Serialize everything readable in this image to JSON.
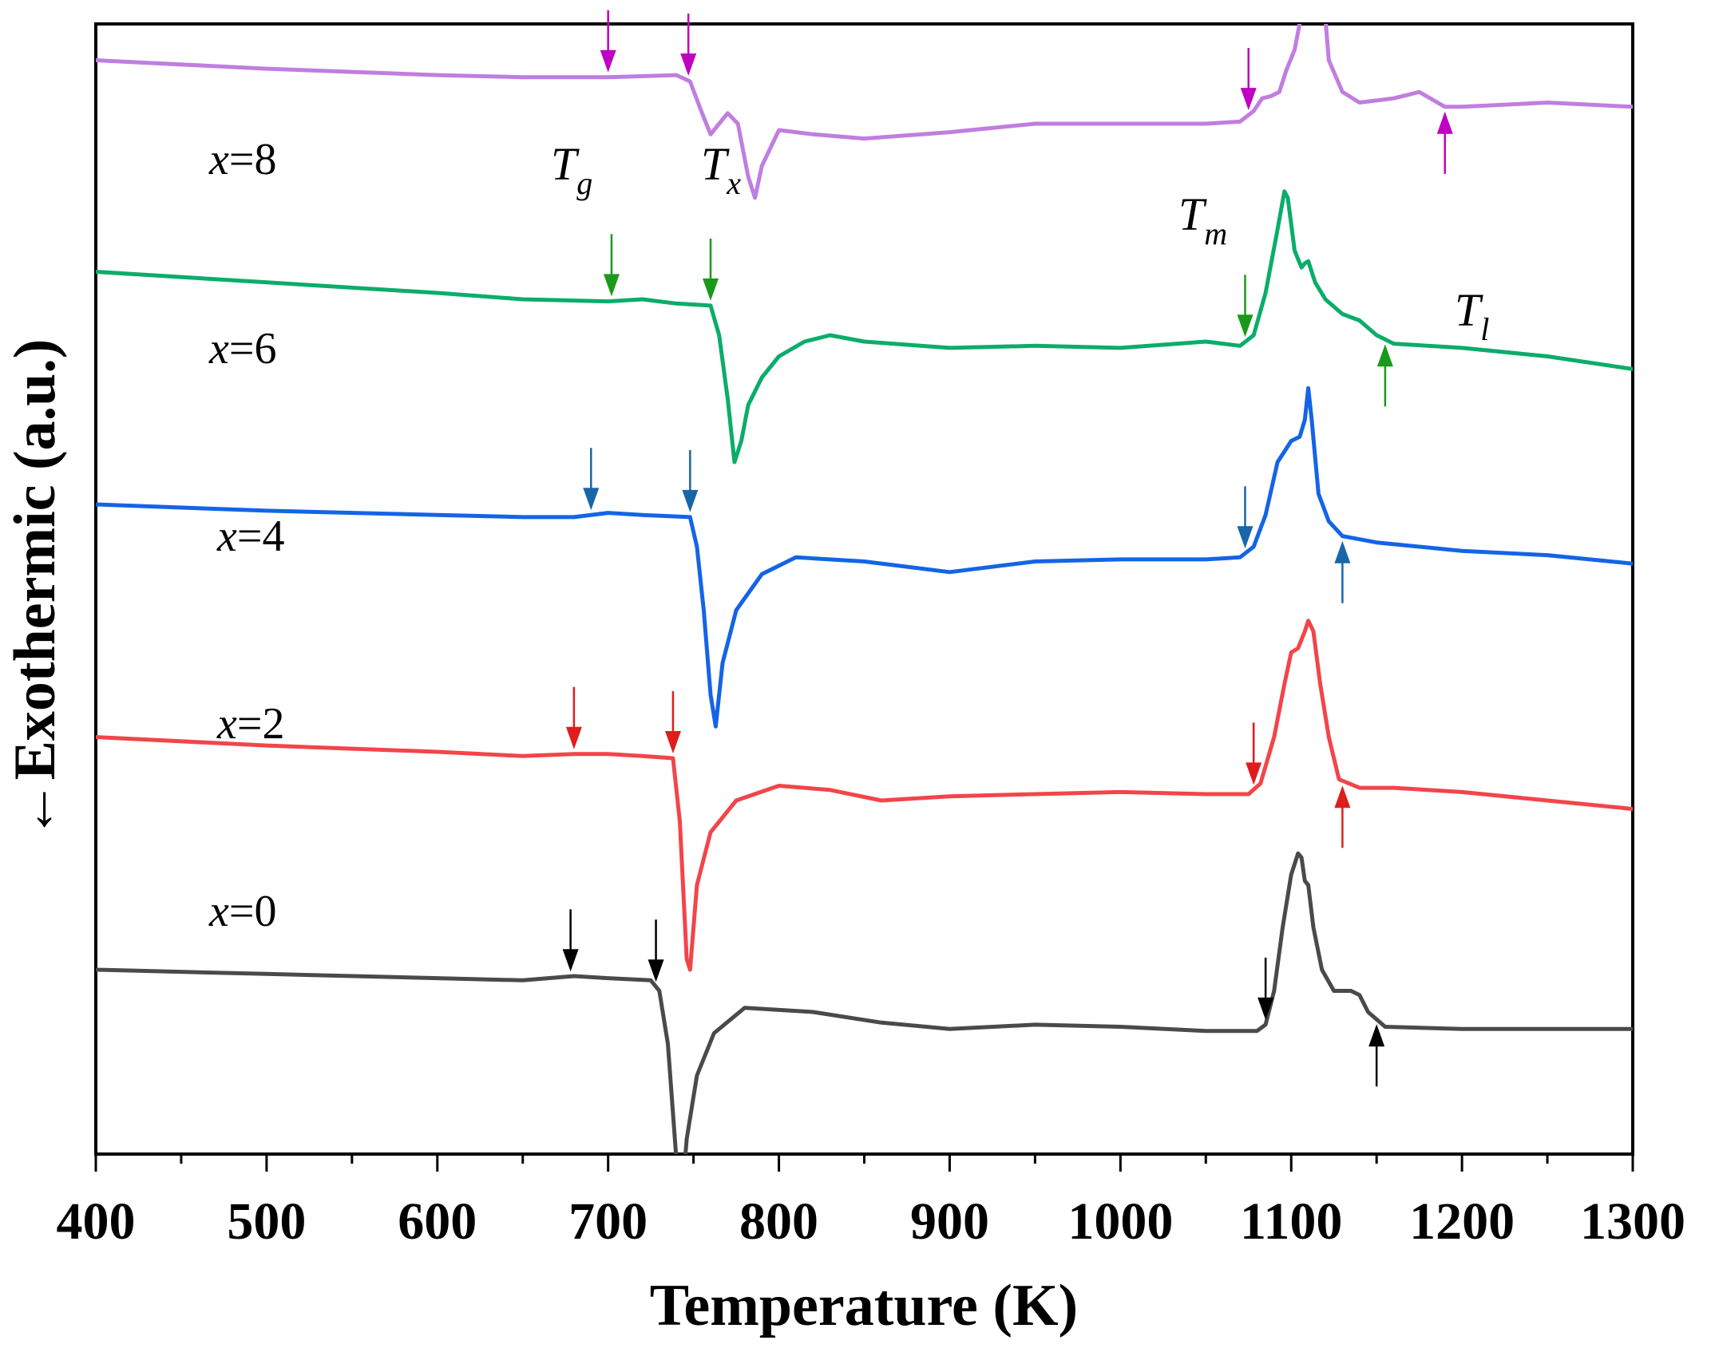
{
  "chart_data": {
    "type": "line",
    "title": "",
    "xlabel": "Temperature (K)",
    "ylabel": "←Exothermic (a.u.)",
    "xlim": [
      400,
      1300
    ],
    "xticks": [
      "400",
      "500",
      "600",
      "700",
      "800",
      "900",
      "1000",
      "1100",
      "1200",
      "1300"
    ],
    "y_ticks_shown": false,
    "grid": false,
    "annotation_labels": {
      "Tg": {
        "main": "T",
        "sub": "g"
      },
      "Tx": {
        "main": "T",
        "sub": "x"
      },
      "Tm": {
        "main": "T",
        "sub": "m"
      },
      "Tl": {
        "main": "T",
        "sub": "l"
      }
    },
    "series": [
      {
        "var": "x",
        "eq": "=",
        "num": "8",
        "label": "x=8",
        "color": "#c07ee0",
        "arrow_color": "#c000c0",
        "offset": 5.3,
        "Tg": 700,
        "Tx": 747,
        "Tm": 1075,
        "Tl": 1190,
        "points": [
          [
            400,
            0.0
          ],
          [
            500,
            -0.04
          ],
          [
            600,
            -0.07
          ],
          [
            650,
            -0.08
          ],
          [
            700,
            -0.08
          ],
          [
            740,
            -0.07
          ],
          [
            748,
            -0.1
          ],
          [
            755,
            -0.25
          ],
          [
            760,
            -0.35
          ],
          [
            765,
            -0.3
          ],
          [
            770,
            -0.25
          ],
          [
            776,
            -0.3
          ],
          [
            782,
            -0.55
          ],
          [
            786,
            -0.65
          ],
          [
            790,
            -0.5
          ],
          [
            800,
            -0.33
          ],
          [
            820,
            -0.35
          ],
          [
            850,
            -0.37
          ],
          [
            900,
            -0.34
          ],
          [
            950,
            -0.3
          ],
          [
            1000,
            -0.3
          ],
          [
            1050,
            -0.3
          ],
          [
            1070,
            -0.29
          ],
          [
            1078,
            -0.24
          ],
          [
            1083,
            -0.18
          ],
          [
            1088,
            -0.17
          ],
          [
            1093,
            -0.15
          ],
          [
            1097,
            -0.05
          ],
          [
            1102,
            0.05
          ],
          [
            1108,
            0.3
          ],
          [
            1112,
            0.6
          ],
          [
            1115,
            0.66
          ],
          [
            1118,
            0.4
          ],
          [
            1122,
            0.0
          ],
          [
            1130,
            -0.15
          ],
          [
            1140,
            -0.2
          ],
          [
            1160,
            -0.18
          ],
          [
            1175,
            -0.15
          ],
          [
            1190,
            -0.22
          ],
          [
            1200,
            -0.22
          ],
          [
            1250,
            -0.2
          ],
          [
            1300,
            -0.22
          ]
        ]
      },
      {
        "var": "x",
        "eq": "=",
        "num": "6",
        "label": "x=6",
        "color": "#0aad6a",
        "arrow_color": "#1a9a1a",
        "offset": 4.3,
        "Tg": 702,
        "Tx": 760,
        "Tm": 1073,
        "Tl": 1155,
        "points": [
          [
            400,
            0.0
          ],
          [
            500,
            -0.05
          ],
          [
            600,
            -0.1
          ],
          [
            650,
            -0.13
          ],
          [
            700,
            -0.14
          ],
          [
            720,
            -0.13
          ],
          [
            740,
            -0.15
          ],
          [
            760,
            -0.16
          ],
          [
            765,
            -0.3
          ],
          [
            770,
            -0.6
          ],
          [
            774,
            -0.9
          ],
          [
            778,
            -0.8
          ],
          [
            782,
            -0.63
          ],
          [
            790,
            -0.5
          ],
          [
            800,
            -0.4
          ],
          [
            815,
            -0.33
          ],
          [
            830,
            -0.3
          ],
          [
            850,
            -0.33
          ],
          [
            900,
            -0.36
          ],
          [
            950,
            -0.35
          ],
          [
            1000,
            -0.36
          ],
          [
            1050,
            -0.33
          ],
          [
            1070,
            -0.35
          ],
          [
            1078,
            -0.3
          ],
          [
            1085,
            -0.1
          ],
          [
            1092,
            0.2
          ],
          [
            1096,
            0.38
          ],
          [
            1098,
            0.35
          ],
          [
            1102,
            0.1
          ],
          [
            1106,
            0.02
          ],
          [
            1108,
            0.04
          ],
          [
            1110,
            0.05
          ],
          [
            1114,
            -0.05
          ],
          [
            1120,
            -0.13
          ],
          [
            1130,
            -0.2
          ],
          [
            1140,
            -0.23
          ],
          [
            1150,
            -0.3
          ],
          [
            1160,
            -0.34
          ],
          [
            1200,
            -0.36
          ],
          [
            1250,
            -0.4
          ],
          [
            1300,
            -0.46
          ]
        ]
      },
      {
        "var": "x",
        "eq": "=",
        "num": "4",
        "label": "x=4",
        "color": "#1464e6",
        "arrow_color": "#1866a8",
        "offset": 3.2,
        "Tg": 690,
        "Tx": 748,
        "Tm": 1073,
        "Tl": 1130,
        "points": [
          [
            400,
            0.0
          ],
          [
            500,
            -0.03
          ],
          [
            600,
            -0.05
          ],
          [
            650,
            -0.06
          ],
          [
            680,
            -0.06
          ],
          [
            700,
            -0.04
          ],
          [
            720,
            -0.05
          ],
          [
            748,
            -0.06
          ],
          [
            752,
            -0.2
          ],
          [
            756,
            -0.5
          ],
          [
            760,
            -0.9
          ],
          [
            763,
            -1.05
          ],
          [
            767,
            -0.75
          ],
          [
            775,
            -0.5
          ],
          [
            790,
            -0.33
          ],
          [
            810,
            -0.25
          ],
          [
            850,
            -0.27
          ],
          [
            900,
            -0.32
          ],
          [
            950,
            -0.27
          ],
          [
            1000,
            -0.26
          ],
          [
            1050,
            -0.26
          ],
          [
            1070,
            -0.25
          ],
          [
            1078,
            -0.2
          ],
          [
            1085,
            -0.05
          ],
          [
            1092,
            0.2
          ],
          [
            1096,
            0.25
          ],
          [
            1100,
            0.3
          ],
          [
            1105,
            0.32
          ],
          [
            1108,
            0.4
          ],
          [
            1110,
            0.55
          ],
          [
            1112,
            0.4
          ],
          [
            1116,
            0.05
          ],
          [
            1122,
            -0.08
          ],
          [
            1130,
            -0.15
          ],
          [
            1150,
            -0.18
          ],
          [
            1200,
            -0.22
          ],
          [
            1250,
            -0.24
          ],
          [
            1300,
            -0.28
          ]
        ]
      },
      {
        "var": "x",
        "eq": "=",
        "num": "2",
        "label": "x=2",
        "color": "#f2454a",
        "arrow_color": "#e01c1c",
        "offset": 2.1,
        "Tg": 680,
        "Tx": 738,
        "Tm": 1078,
        "Tl": 1130,
        "points": [
          [
            400,
            0.0
          ],
          [
            500,
            -0.04
          ],
          [
            600,
            -0.07
          ],
          [
            650,
            -0.09
          ],
          [
            680,
            -0.08
          ],
          [
            700,
            -0.08
          ],
          [
            720,
            -0.09
          ],
          [
            738,
            -0.1
          ],
          [
            742,
            -0.4
          ],
          [
            746,
            -1.05
          ],
          [
            748,
            -1.1
          ],
          [
            752,
            -0.7
          ],
          [
            760,
            -0.45
          ],
          [
            775,
            -0.3
          ],
          [
            800,
            -0.23
          ],
          [
            830,
            -0.25
          ],
          [
            860,
            -0.3
          ],
          [
            900,
            -0.28
          ],
          [
            950,
            -0.27
          ],
          [
            1000,
            -0.26
          ],
          [
            1050,
            -0.27
          ],
          [
            1075,
            -0.27
          ],
          [
            1082,
            -0.22
          ],
          [
            1090,
            0.0
          ],
          [
            1096,
            0.25
          ],
          [
            1100,
            0.4
          ],
          [
            1104,
            0.42
          ],
          [
            1108,
            0.5
          ],
          [
            1110,
            0.55
          ],
          [
            1113,
            0.5
          ],
          [
            1117,
            0.25
          ],
          [
            1122,
            0.0
          ],
          [
            1128,
            -0.2
          ],
          [
            1140,
            -0.24
          ],
          [
            1160,
            -0.24
          ],
          [
            1200,
            -0.26
          ],
          [
            1250,
            -0.3
          ],
          [
            1300,
            -0.34
          ]
        ]
      },
      {
        "var": "x",
        "eq": "=",
        "num": "0",
        "label": "x=0",
        "color": "#4a4a4a",
        "arrow_color": "#000000",
        "offset": 1.0,
        "Tg": 678,
        "Tx": 728,
        "Tm": 1085,
        "Tl": 1150,
        "points": [
          [
            400,
            0.0
          ],
          [
            500,
            -0.02
          ],
          [
            600,
            -0.04
          ],
          [
            650,
            -0.05
          ],
          [
            680,
            -0.03
          ],
          [
            700,
            -0.04
          ],
          [
            725,
            -0.05
          ],
          [
            730,
            -0.1
          ],
          [
            735,
            -0.35
          ],
          [
            740,
            -0.9
          ],
          [
            743,
            -1.1
          ],
          [
            746,
            -0.8
          ],
          [
            752,
            -0.5
          ],
          [
            762,
            -0.3
          ],
          [
            780,
            -0.18
          ],
          [
            820,
            -0.2
          ],
          [
            860,
            -0.25
          ],
          [
            900,
            -0.28
          ],
          [
            950,
            -0.26
          ],
          [
            1000,
            -0.27
          ],
          [
            1050,
            -0.29
          ],
          [
            1080,
            -0.29
          ],
          [
            1085,
            -0.26
          ],
          [
            1090,
            -0.1
          ],
          [
            1095,
            0.2
          ],
          [
            1100,
            0.45
          ],
          [
            1104,
            0.55
          ],
          [
            1106,
            0.53
          ],
          [
            1108,
            0.42
          ],
          [
            1110,
            0.4
          ],
          [
            1113,
            0.2
          ],
          [
            1118,
            0.0
          ],
          [
            1125,
            -0.1
          ],
          [
            1135,
            -0.1
          ],
          [
            1140,
            -0.12
          ],
          [
            1145,
            -0.2
          ],
          [
            1155,
            -0.27
          ],
          [
            1200,
            -0.28
          ],
          [
            1250,
            -0.28
          ],
          [
            1300,
            -0.28
          ]
        ]
      }
    ]
  }
}
